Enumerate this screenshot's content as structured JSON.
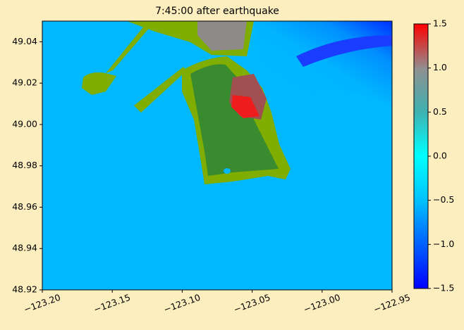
{
  "chart_data": {
    "type": "heatmap",
    "title": "7:45:00 after earthquake",
    "xlim": [
      -123.2,
      -122.95
    ],
    "xticks": [
      {
        "value": -123.2,
        "label": "−123.20"
      },
      {
        "value": -123.15,
        "label": "−123.15"
      },
      {
        "value": -123.1,
        "label": "−123.10"
      },
      {
        "value": -123.05,
        "label": "−123.05"
      },
      {
        "value": -123.0,
        "label": "−123.00"
      },
      {
        "value": -122.95,
        "label": "−122.95"
      }
    ],
    "ylim": [
      48.92,
      49.05
    ],
    "yticks": [
      48.92,
      48.94,
      48.96,
      48.98,
      {
        "value": 49.0,
        "label": "49.00"
      },
      49.02,
      49.04
    ],
    "clim": [
      -1.5,
      1.5
    ],
    "cticks": [
      {
        "value": -1.5,
        "label": "−1.5"
      },
      {
        "value": -1.0,
        "label": "−1.0"
      },
      {
        "value": -0.5,
        "label": "−0.5"
      },
      {
        "value": 0.0,
        "label": "0.0"
      },
      0.5,
      {
        "value": 1.0,
        "label": "1.0"
      },
      1.5
    ]
  }
}
